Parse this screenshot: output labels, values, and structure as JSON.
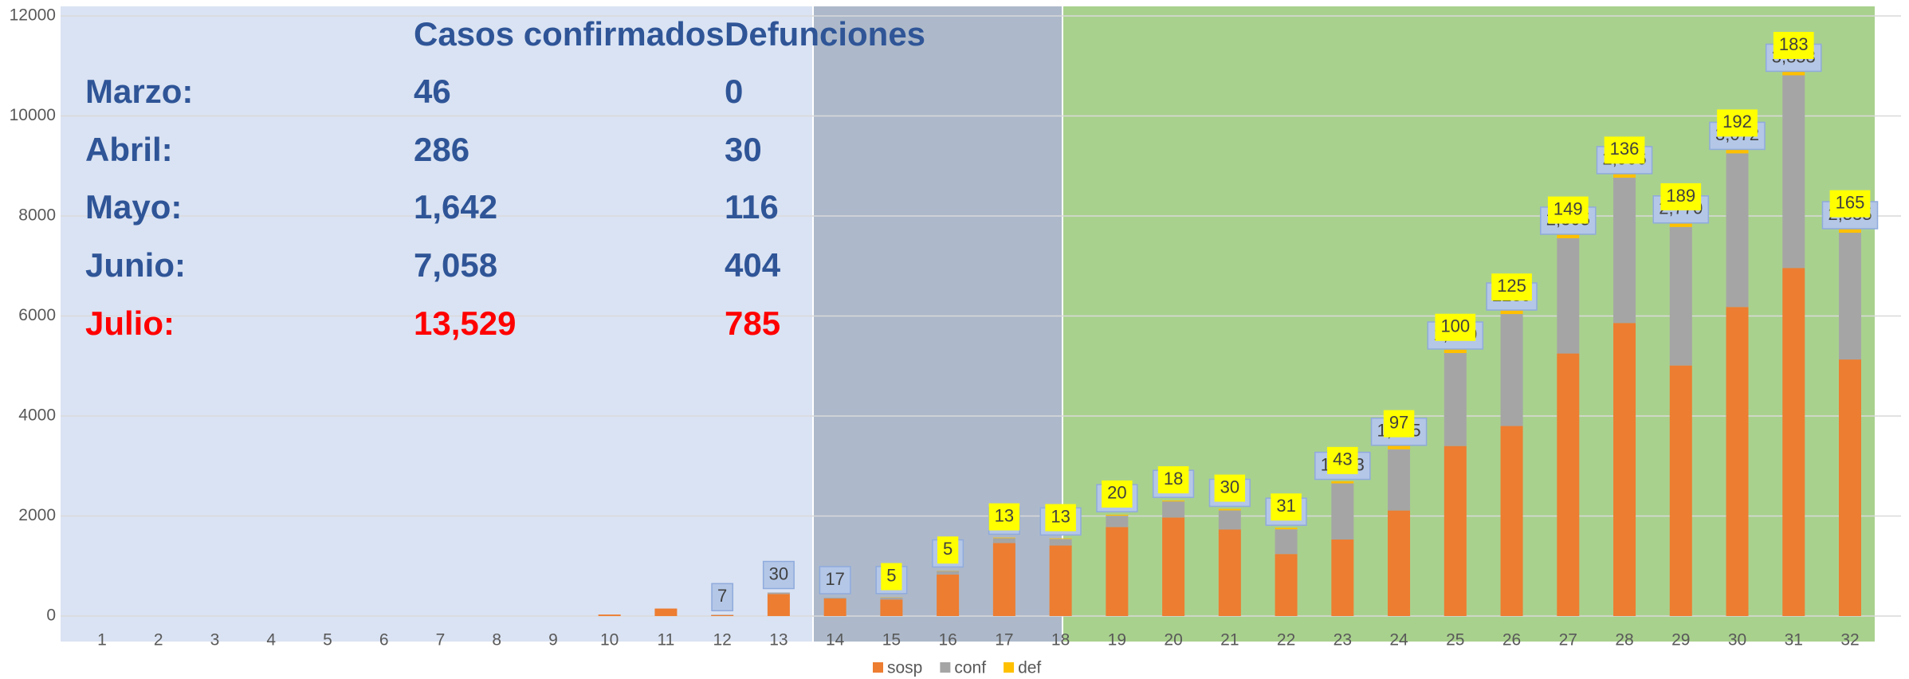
{
  "chart_data": {
    "type": "stacked_bar",
    "categories": [
      "1",
      "2",
      "3",
      "4",
      "5",
      "6",
      "7",
      "8",
      "9",
      "10",
      "11",
      "12",
      "13",
      "14",
      "15",
      "16",
      "17",
      "18",
      "19",
      "20",
      "21",
      "22",
      "23",
      "24",
      "25",
      "26",
      "27",
      "28",
      "29",
      "30",
      "31",
      "32"
    ],
    "series": [
      {
        "name": "sosp",
        "color": "#ed7d31",
        "values": [
          0,
          0,
          0,
          0,
          0,
          0,
          0,
          0,
          0,
          30,
          150,
          20,
          440,
          350,
          330,
          830,
          1460,
          1410,
          1780,
          1970,
          1730,
          1240,
          1530,
          2110,
          3400,
          3800,
          5250,
          5860,
          5010,
          6180,
          6960,
          5130
        ]
      },
      {
        "name": "conf",
        "color": "#a5a5a5",
        "values": [
          0,
          0,
          0,
          0,
          0,
          0,
          0,
          0,
          0,
          0,
          0,
          7,
          30,
          17,
          39,
          71,
          96,
          131,
          226,
          322,
          383,
          495,
          1123,
          1225,
          1859,
          2239,
          2305,
          2906,
          2770,
          3072,
          3853,
          2535
        ],
        "value_labels": [
          null,
          null,
          null,
          null,
          null,
          null,
          null,
          null,
          null,
          null,
          null,
          "7",
          "30",
          "17",
          "39",
          "71",
          "96",
          "131",
          "226",
          "322",
          "383",
          "495",
          "1,123",
          "1,225",
          "1,859",
          "2239",
          "2,305",
          "2,906",
          "2,770",
          "3,072",
          "3,853",
          "2,535"
        ]
      },
      {
        "name": "def",
        "color": "#ffc000",
        "values": [
          0,
          0,
          0,
          0,
          0,
          0,
          0,
          0,
          0,
          0,
          0,
          0,
          0,
          0,
          5,
          5,
          13,
          13,
          20,
          18,
          30,
          31,
          43,
          97,
          100,
          125,
          149,
          136,
          189,
          192,
          183,
          165
        ]
      }
    ],
    "ylim": [
      0,
      12000
    ],
    "yticks": [
      0,
      2000,
      4000,
      6000,
      8000,
      10000,
      12000
    ],
    "grid": true,
    "legend": "bottom"
  },
  "summary": {
    "headers": [
      "Casos confirmados",
      "Defunciones"
    ],
    "rows": [
      [
        "Marzo:",
        "46",
        "0"
      ],
      [
        "Abril:",
        "286",
        "30"
      ],
      [
        "Mayo:",
        "1,642",
        "116"
      ],
      [
        "Junio:",
        "7,058",
        "404"
      ],
      [
        "Julio:",
        "13,529",
        "785"
      ]
    ]
  }
}
